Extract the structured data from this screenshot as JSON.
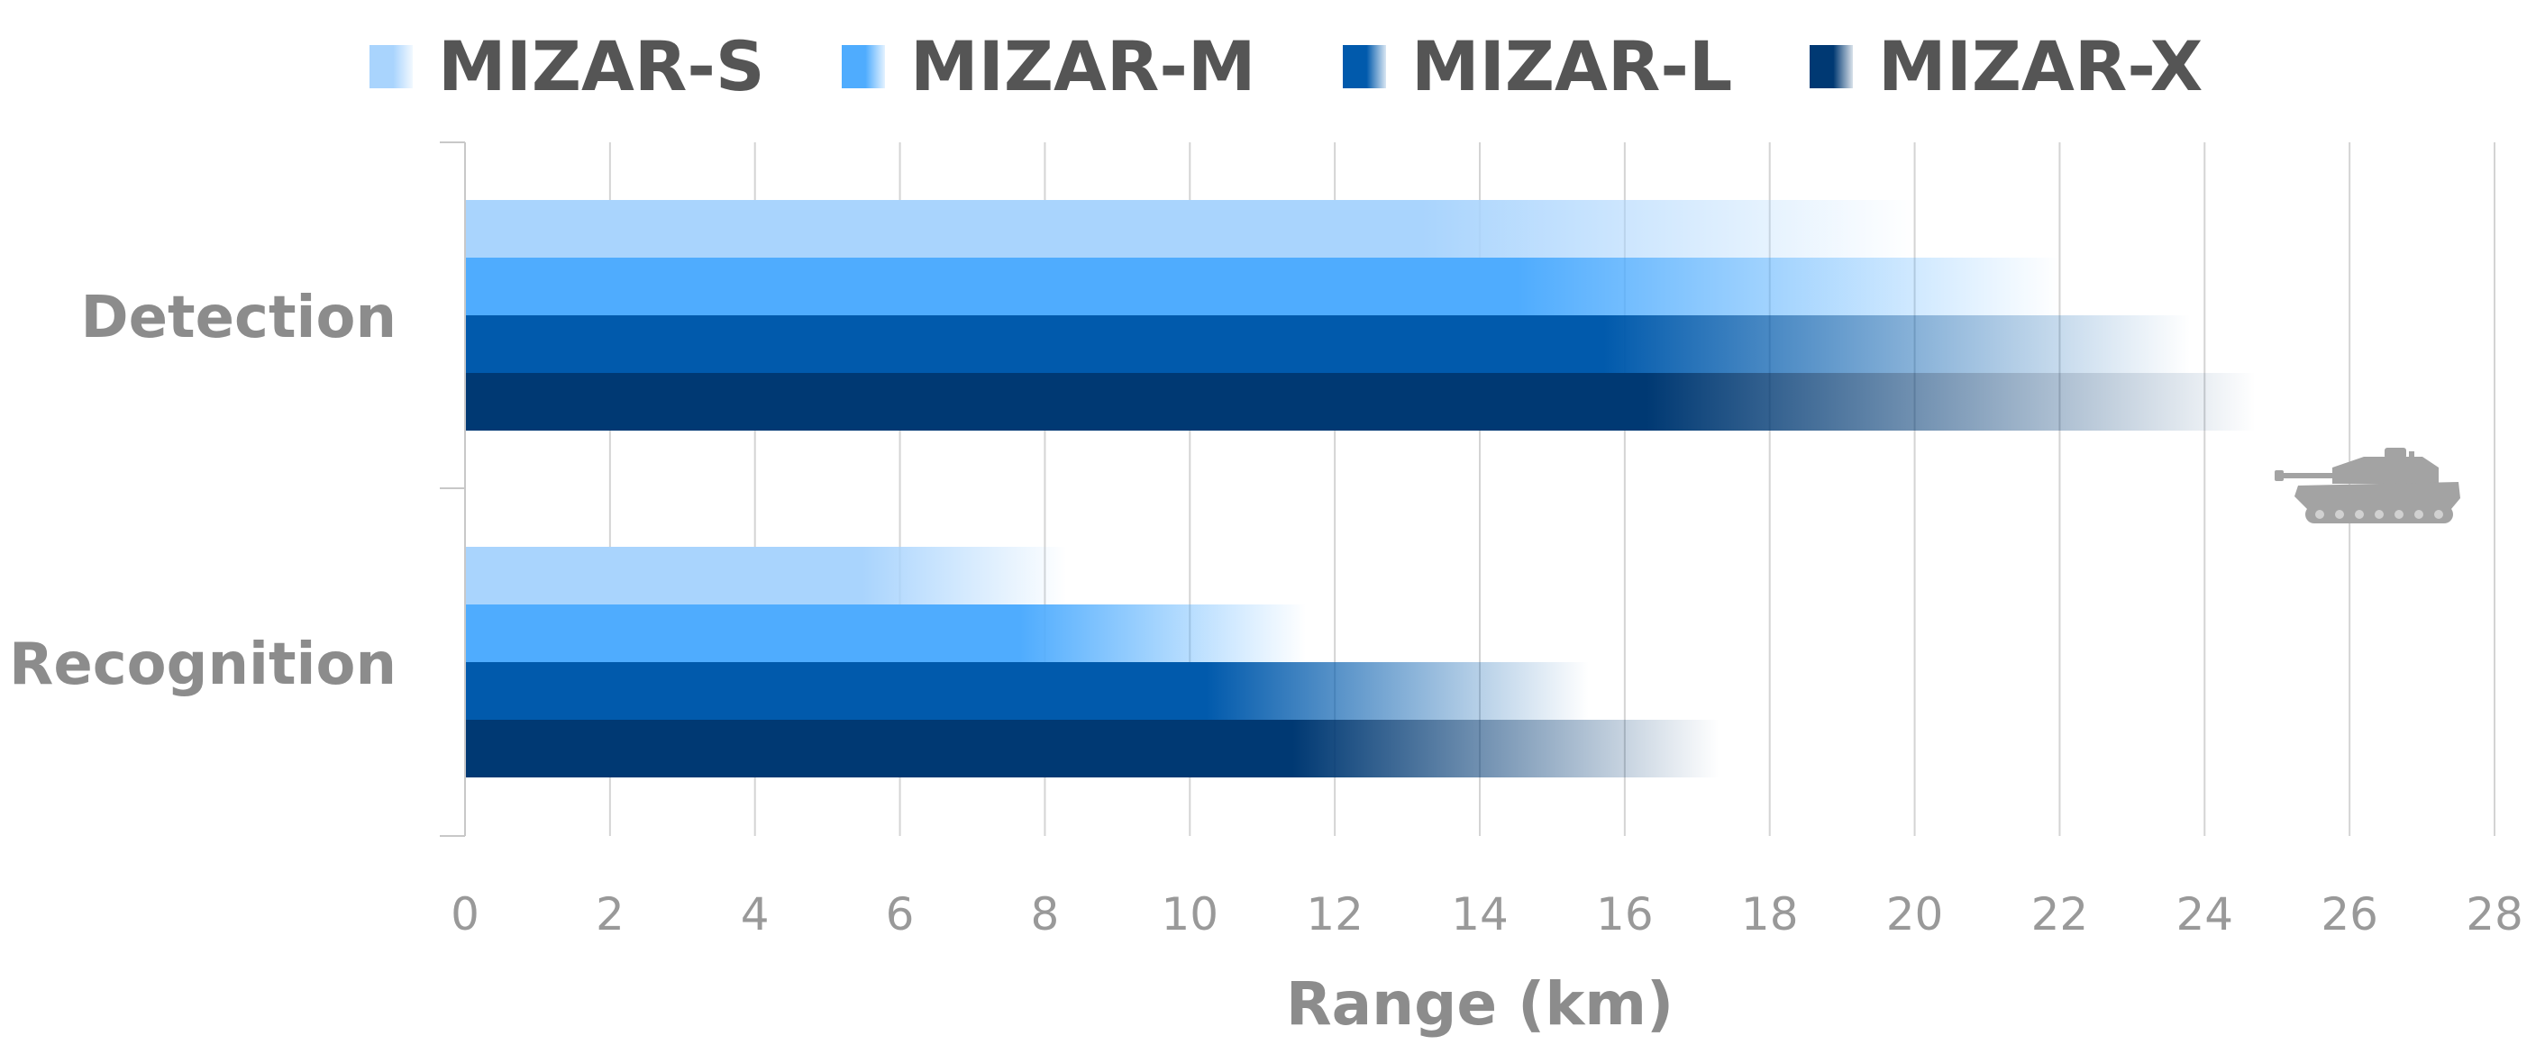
{
  "chart_data": {
    "type": "bar",
    "orientation": "horizontal",
    "title": "",
    "xlabel": "Range (km)",
    "ylabel": "",
    "xlim": [
      0,
      28
    ],
    "xticks": [
      0,
      2,
      4,
      6,
      8,
      10,
      12,
      14,
      16,
      18,
      20,
      22,
      24,
      26,
      28
    ],
    "tick_labels": [
      "0",
      "2",
      "4",
      "6",
      "8",
      "10",
      "12",
      "14",
      "16",
      "18",
      "20",
      "22",
      "24",
      "26",
      "28"
    ],
    "categories": [
      "Detection",
      "Recognition"
    ],
    "series": [
      {
        "name": "MIZAR-S",
        "color": "#a9d4fd",
        "values": [
          20.0,
          8.3
        ]
      },
      {
        "name": "MIZAR-M",
        "color": "#4facfe",
        "values": [
          22.0,
          11.6
        ]
      },
      {
        "name": "MIZAR-L",
        "color": "#015aac",
        "values": [
          23.8,
          15.5
        ]
      },
      {
        "name": "MIZAR-X",
        "color": "#003973",
        "values": [
          24.7,
          17.3
        ]
      }
    ],
    "legend_position": "top-center",
    "grid": true,
    "bar_fill": "gradient fading to white toward bar end",
    "decoration_icon": "tank-silhouette-icon",
    "decoration_color": "#a3a3a3"
  }
}
